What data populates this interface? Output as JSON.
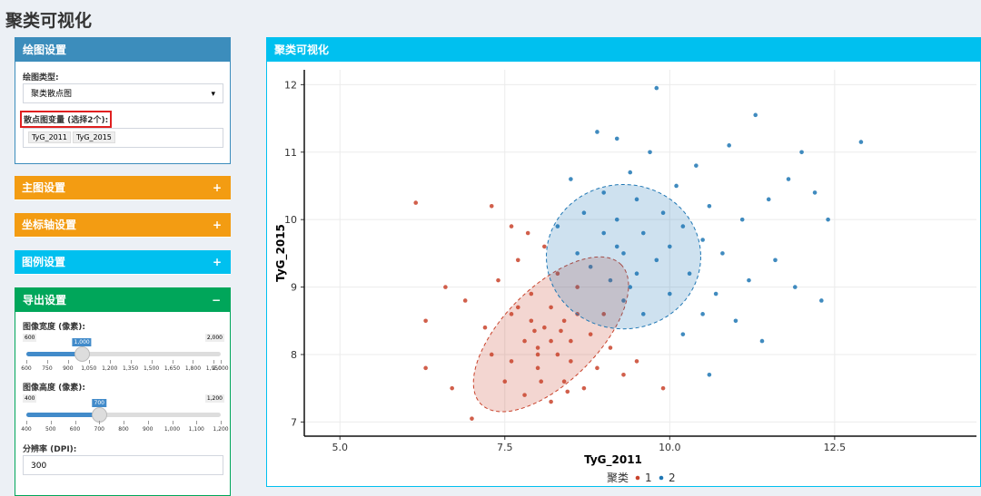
{
  "header": {
    "title": "聚类可视化"
  },
  "sidebar": {
    "plot_settings": {
      "title": "绘图设置",
      "type_label": "绘图类型:",
      "type_value": "聚类散点图",
      "vars_label": "散点图变量 (选择2个):",
      "vars": [
        "TyG_2011",
        "TyG_2015"
      ]
    },
    "collapsed": [
      {
        "title": "主图设置",
        "icon": "+"
      },
      {
        "title": "坐标轴设置",
        "icon": "+"
      },
      {
        "title": "图例设置",
        "icon": "+"
      }
    ],
    "export": {
      "title": "导出设置",
      "icon": "−",
      "width": {
        "label": "图像宽度 (像素):",
        "min": "600",
        "max": "2,000",
        "value": "1,000",
        "ticks": [
          "600",
          "750",
          "900",
          "1,050",
          "1,200",
          "1,350",
          "1,500",
          "1,650",
          "1,800",
          "1,950",
          "2,000"
        ]
      },
      "height": {
        "label": "图像高度 (像素):",
        "min": "400",
        "max": "1,200",
        "value": "700",
        "ticks": [
          "400",
          "500",
          "600",
          "700",
          "800",
          "900",
          "1,000",
          "1,100",
          "1,200"
        ]
      },
      "dpi": {
        "label": "分辨率 (DPI):",
        "value": "300"
      }
    }
  },
  "panel": {
    "title": "聚类可视化"
  },
  "chart_data": {
    "type": "scatter",
    "x_label": "TyG_2011",
    "y_label": "TyG_2015",
    "legend_title": "聚类",
    "grid": true,
    "xlim": [
      4.46,
      14.65
    ],
    "xticks": [
      {
        "value": 5,
        "label": "5.0"
      },
      7.5,
      {
        "value": 10,
        "label": "10.0"
      },
      12.5
    ],
    "ylim": [
      6.79,
      12.22
    ],
    "yticks": [
      7,
      8,
      9,
      10,
      11,
      12
    ],
    "series": [
      {
        "name": "1",
        "color": "#c9432c",
        "ellipse": {
          "cx": 8.2,
          "cy": 8.3,
          "rx": 1.5,
          "ry": 0.7,
          "angle": -45
        },
        "x": [
          6.15,
          6.3,
          6.3,
          6.6,
          6.7,
          6.9,
          7.0,
          7.2,
          7.3,
          7.4,
          7.5,
          7.6,
          7.6,
          7.7,
          7.8,
          7.8,
          7.9,
          7.9,
          8.0,
          8.0,
          8.1,
          8.1,
          8.2,
          8.2,
          8.3,
          8.3,
          8.4,
          8.4,
          8.5,
          8.5,
          8.6,
          8.6,
          8.7,
          8.8,
          8.9,
          9.0,
          9.1,
          9.3,
          9.5,
          9.9,
          7.3,
          7.6,
          8.0,
          8.2,
          7.95,
          8.35,
          7.7,
          8.05,
          8.45,
          7.85
        ],
        "values": [
          10.25,
          8.5,
          7.8,
          9.0,
          7.5,
          8.8,
          7.05,
          8.4,
          8.0,
          9.1,
          7.6,
          8.6,
          7.9,
          9.4,
          8.2,
          7.4,
          8.9,
          8.5,
          7.8,
          8.1,
          9.6,
          8.4,
          7.3,
          8.7,
          8.0,
          9.2,
          7.6,
          8.5,
          8.2,
          7.9,
          9.0,
          8.6,
          7.5,
          8.3,
          7.8,
          8.6,
          8.1,
          7.7,
          7.9,
          7.5,
          10.2,
          9.9,
          8.0,
          8.2,
          8.35,
          8.35,
          8.7,
          7.6,
          7.45,
          9.8
        ]
      },
      {
        "name": "2",
        "color": "#1f77b4",
        "ellipse": {
          "cx": 9.3,
          "cy": 9.45,
          "rx": 1.17,
          "ry": 1.07,
          "angle": 0
        },
        "x": [
          8.3,
          8.5,
          8.7,
          8.8,
          8.9,
          9.0,
          9.0,
          9.1,
          9.2,
          9.2,
          9.3,
          9.3,
          9.4,
          9.5,
          9.5,
          9.6,
          9.6,
          9.7,
          9.8,
          9.8,
          9.9,
          10.0,
          10.0,
          10.1,
          10.2,
          10.2,
          10.3,
          10.4,
          10.5,
          10.5,
          10.6,
          10.7,
          10.8,
          10.9,
          11.0,
          11.1,
          11.2,
          11.3,
          11.4,
          11.5,
          11.6,
          11.8,
          11.9,
          12.0,
          12.2,
          12.3,
          12.4,
          12.9,
          8.6,
          9.4,
          10.6,
          9.2
        ],
        "values": [
          9.9,
          10.6,
          10.1,
          9.3,
          11.3,
          9.8,
          10.4,
          9.1,
          10.0,
          11.2,
          9.5,
          8.8,
          10.7,
          9.2,
          10.3,
          8.6,
          9.8,
          11.0,
          9.4,
          11.95,
          10.1,
          8.9,
          9.6,
          10.5,
          8.3,
          9.9,
          9.2,
          10.8,
          8.6,
          9.7,
          10.2,
          8.9,
          9.5,
          11.1,
          8.5,
          10.0,
          9.1,
          11.55,
          8.2,
          10.3,
          9.4,
          10.6,
          9.0,
          11.0,
          10.4,
          8.8,
          10.0,
          11.15,
          9.5,
          9.0,
          7.7,
          9.6
        ]
      }
    ]
  }
}
